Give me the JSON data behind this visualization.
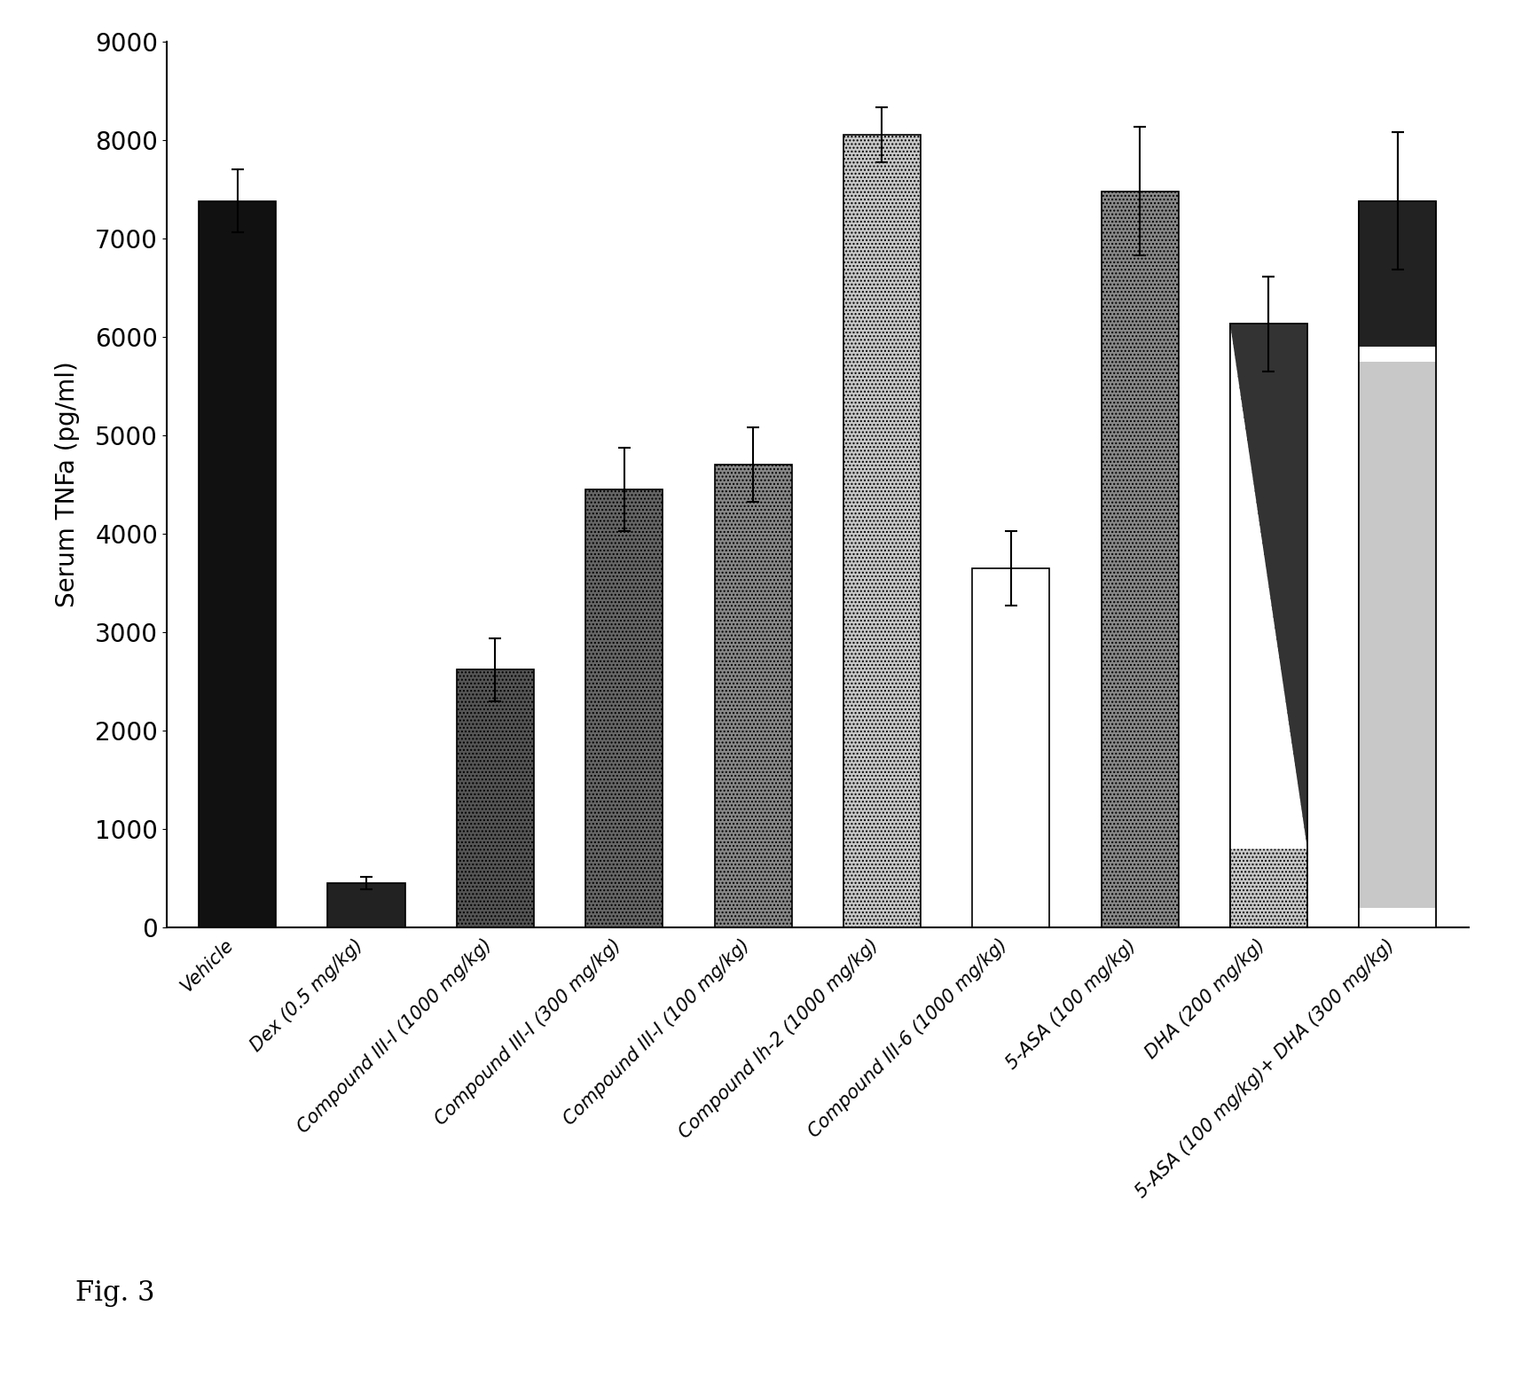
{
  "categories": [
    "Vehicle",
    "Dex (0.5 mg/kg)",
    "Compound III-I (1000 mg/kg)",
    "Compound III-I (300 mg/kg)",
    "Compound III-I (100 mg/kg)",
    "Compound Ih-2 (1000 mg/kg)",
    "Compound III-6 (1000 mg/kg)",
    "5-ASA (100 mg/kg)",
    "DHA (200 mg/kg)",
    "5-ASA (100 mg/kg)+ DHA (300 mg/kg)"
  ],
  "values": [
    7380,
    450,
    2620,
    4450,
    4700,
    8050,
    3650,
    7480,
    6130,
    7380
  ],
  "errors": [
    320,
    60,
    320,
    420,
    380,
    280,
    380,
    650,
    480,
    700
  ],
  "ylabel": "Serum TNFa (pg/ml)",
  "ylim": [
    0,
    9000
  ],
  "yticks": [
    0,
    1000,
    2000,
    3000,
    4000,
    5000,
    6000,
    7000,
    8000,
    9000
  ],
  "fig_caption": "Fig. 3",
  "background_color": "#ffffff",
  "bar_width": 0.6,
  "bar_facecolors": [
    "#111111",
    "#222222",
    "#555555",
    "#666666",
    "#888888",
    "#c8c8c8",
    "#ffffff",
    "#888888",
    "#c8c8c8",
    "#c8c8c8"
  ],
  "bar_hatches": [
    "",
    "",
    "....",
    "....",
    "....",
    "....",
    "",
    "....",
    "....",
    "...."
  ],
  "bar_edgecolors": [
    "#000000",
    "#000000",
    "#000000",
    "#000000",
    "#000000",
    "#000000",
    "#000000",
    "#000000",
    "#000000",
    "#000000"
  ]
}
